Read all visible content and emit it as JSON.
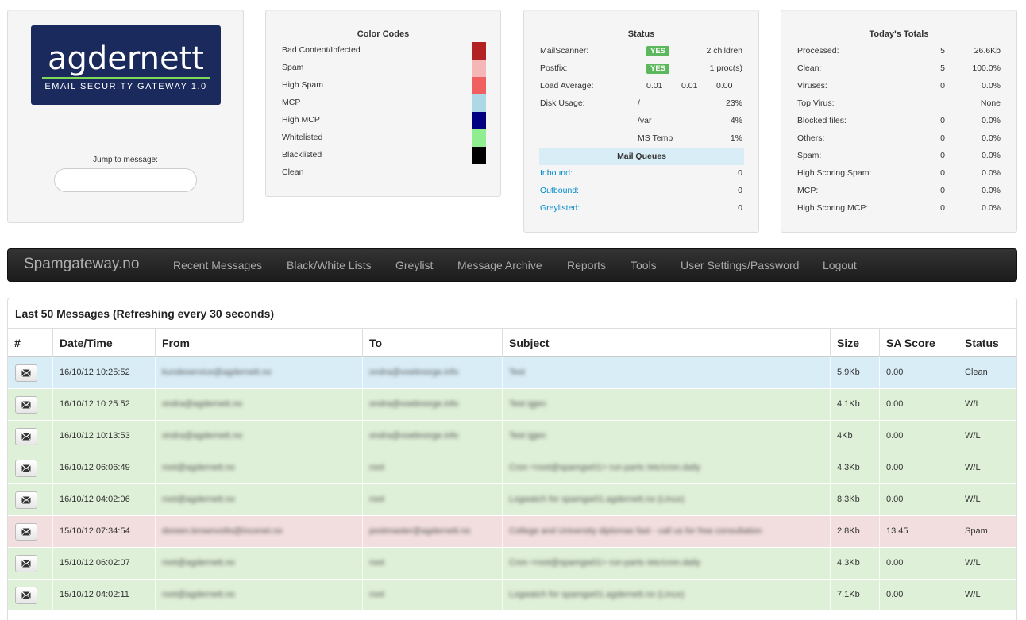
{
  "logo": {
    "word": "agdernett",
    "subtitle": "EMAIL SECURITY GATEWAY 1.0"
  },
  "jump": {
    "label": "Jump to message:",
    "value": ""
  },
  "color_codes": {
    "title": "Color Codes",
    "items": [
      {
        "label": "Bad Content/Infected",
        "color": "#b22222"
      },
      {
        "label": "Spam",
        "color": "#f4b6b6"
      },
      {
        "label": "High Spam",
        "color": "#f06060"
      },
      {
        "label": "MCP",
        "color": "#add8e6"
      },
      {
        "label": "High MCP",
        "color": "#000080"
      },
      {
        "label": "Whitelisted",
        "color": "#90ee90"
      },
      {
        "label": "Blacklisted",
        "color": "#000000"
      },
      {
        "label": "Clean",
        "color": ""
      }
    ]
  },
  "status": {
    "title": "Status",
    "mailscanner": {
      "label": "MailScanner:",
      "badge": "YES",
      "value": "2 children"
    },
    "postfix": {
      "label": "Postfix:",
      "badge": "YES",
      "value": "1 proc(s)"
    },
    "load": {
      "label": "Load Average:",
      "v1": "0.01",
      "v2": "0.01",
      "v3": "0.00"
    },
    "disk": {
      "label": "Disk Usage:",
      "rows": [
        {
          "mount": "/",
          "pct": "23%"
        },
        {
          "mount": "/var",
          "pct": "4%"
        },
        {
          "mount": "MS Temp",
          "pct": "1%"
        }
      ]
    },
    "queues_title": "Mail Queues",
    "queues": [
      {
        "label": "Inbound:",
        "count": "0"
      },
      {
        "label": "Outbound:",
        "count": "0"
      },
      {
        "label": "Greylisted:",
        "count": "0"
      }
    ]
  },
  "totals": {
    "title": "Today's Totals",
    "rows": [
      {
        "label": "Processed:",
        "count": "5",
        "value": "26.6Kb"
      },
      {
        "label": "Clean:",
        "count": "5",
        "value": "100.0%"
      },
      {
        "label": "Viruses:",
        "count": "0",
        "value": "0.0%"
      },
      {
        "label": "Top Virus:",
        "count": "",
        "value": "None"
      },
      {
        "label": "Blocked files:",
        "count": "0",
        "value": "0.0%"
      },
      {
        "label": "Others:",
        "count": "0",
        "value": "0.0%"
      },
      {
        "label": "Spam:",
        "count": "0",
        "value": "0.0%"
      },
      {
        "label": "High Scoring Spam:",
        "count": "0",
        "value": "0.0%"
      },
      {
        "label": "MCP:",
        "count": "0",
        "value": "0.0%"
      },
      {
        "label": "High Scoring MCP:",
        "count": "0",
        "value": "0.0%"
      }
    ]
  },
  "navbar": {
    "brand": "Spamgateway.no",
    "items": [
      "Recent Messages",
      "Black/White Lists",
      "Greylist",
      "Message Archive",
      "Reports",
      "Tools",
      "User Settings/Password",
      "Logout"
    ]
  },
  "messages": {
    "caption": "Last 50 Messages (Refreshing every 30 seconds)",
    "headers": [
      "#",
      "Date/Time",
      "From",
      "To",
      "Subject",
      "Size",
      "SA Score",
      "Status"
    ],
    "row_colors": {
      "clean": "#d9edf7",
      "whitelisted": "#dff0d8",
      "spam": "#f2dede"
    },
    "rows": [
      {
        "kind": "clean",
        "date": "16/10/12 10:25:52",
        "from": "kundeservice@agdernett.no",
        "to": "ondra@voebnorge.info",
        "subject": "Test",
        "size": "5.9Kb",
        "score": "0.00",
        "status": "Clean"
      },
      {
        "kind": "whitelisted",
        "date": "16/10/12 10:25:52",
        "from": "ondra@agdernett.no",
        "to": "ondra@voebnorge.info",
        "subject": "Test igjen",
        "size": "4.1Kb",
        "score": "0.00",
        "status": "W/L"
      },
      {
        "kind": "whitelisted",
        "date": "16/10/12 10:13:53",
        "from": "ondra@agdernett.no",
        "to": "ondra@voebnorge.info",
        "subject": "Test igjen",
        "size": "4Kb",
        "score": "0.00",
        "status": "W/L"
      },
      {
        "kind": "whitelisted",
        "date": "16/10/12 06:06:49",
        "from": "root@agdernett.no",
        "to": "root",
        "subject": "Cron <root@spamgw01> run-parts /etc/cron.daily",
        "size": "4.3Kb",
        "score": "0.00",
        "status": "W/L"
      },
      {
        "kind": "whitelisted",
        "date": "16/10/12 04:02:06",
        "from": "root@agdernett.no",
        "to": "root",
        "subject": "Logwatch for spamgw01.agdernett.no (Linux)",
        "size": "8.3Kb",
        "score": "0.00",
        "status": "W/L"
      },
      {
        "kind": "spam",
        "date": "15/10/12 07:34:54",
        "from": "doreen.brownvolts@inconet.no",
        "to": "postmaster@agdernett.no",
        "subject": "College and University diplomas fast - call us for free consultation",
        "size": "2.8Kb",
        "score": "13.45",
        "status": "Spam"
      },
      {
        "kind": "whitelisted",
        "date": "15/10/12 06:02:07",
        "from": "root@agdernett.no",
        "to": "root",
        "subject": "Cron <root@spamgw01> run-parts /etc/cron.daily",
        "size": "4.3Kb",
        "score": "0.00",
        "status": "W/L"
      },
      {
        "kind": "whitelisted",
        "date": "15/10/12 04:02:11",
        "from": "root@agdernett.no",
        "to": "root",
        "subject": "Logwatch for spamgw01.agdernett.no (Linux)",
        "size": "7.1Kb",
        "score": "0.00",
        "status": "W/L"
      }
    ]
  }
}
